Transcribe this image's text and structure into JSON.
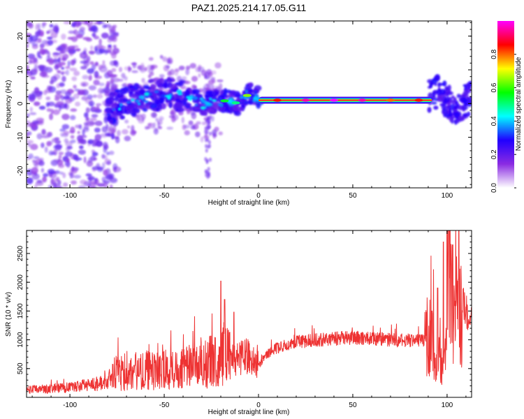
{
  "title": "PAZ1.2025.214.17.05.G11",
  "chart_data": [
    {
      "type": "heatmap",
      "xlabel": "Height of straight line (km)",
      "ylabel": "Frequency (Hz)",
      "xlim": [
        -123,
        113
      ],
      "ylim": [
        -25,
        24.5
      ],
      "x_ticks": [
        -100,
        -50,
        0,
        50,
        100
      ],
      "y_ticks": [
        -20,
        -10,
        0,
        10,
        20
      ],
      "colorbar": {
        "label": "Normalized spectral amplitude",
        "range": [
          0,
          1
        ],
        "ticks": [
          0.0,
          0.2,
          0.4,
          0.6,
          0.8
        ],
        "tick_labels": [
          "0.0",
          "0.2",
          "0.4",
          "0.6",
          "0.8"
        ],
        "colormap": [
          "#ffffff",
          "#8a2be2",
          "#2000ff",
          "#00ffff",
          "#00ff00",
          "#ffff00",
          "#ff0000",
          "#ff00ff"
        ]
      },
      "ridge": [
        {
          "x": -80,
          "y": -1
        },
        {
          "x": -70,
          "y": 0
        },
        {
          "x": -60,
          "y": 2
        },
        {
          "x": -50,
          "y": 3
        },
        {
          "x": -40,
          "y": 2
        },
        {
          "x": -30,
          "y": 0
        },
        {
          "x": -20,
          "y": 1
        },
        {
          "x": -10,
          "y": 0
        },
        {
          "x": -5,
          "y": 3
        },
        {
          "x": 0,
          "y": 1.5
        },
        {
          "x": 20,
          "y": 1
        },
        {
          "x": 50,
          "y": 1
        },
        {
          "x": 80,
          "y": 1
        },
        {
          "x": 90,
          "y": 1.5
        },
        {
          "x": 95,
          "y": 4
        },
        {
          "x": 100,
          "y": 0
        },
        {
          "x": 105,
          "y": -1
        },
        {
          "x": 110,
          "y": 1
        }
      ],
      "band": {
        "x_start": 0,
        "x_end": 92,
        "y": 1,
        "peak_amplitude": 1.0
      }
    },
    {
      "type": "line",
      "xlabel": "Height of straight line (km)",
      "ylabel": "SNR (10 * v/v)",
      "xlim": [
        -123,
        113
      ],
      "ylim": [
        0,
        2900
      ],
      "x_ticks": [
        -100,
        -50,
        0,
        50,
        100
      ],
      "y_ticks": [
        500,
        1000,
        1500,
        2000,
        2500
      ],
      "color": "#ee3333",
      "series": [
        {
          "x": [
            -123,
            -110,
            -100,
            -90,
            -80,
            -78,
            -75,
            -70,
            -65,
            -60,
            -55,
            -50,
            -45,
            -40,
            -35,
            -30,
            -25,
            -20,
            -18,
            -15,
            -10,
            -5,
            0,
            5,
            10,
            15,
            20,
            30,
            40,
            50,
            60,
            70,
            80,
            88,
            90,
            92,
            95,
            98,
            100,
            101,
            103,
            105,
            108,
            110,
            113
          ],
          "y": [
            130,
            150,
            170,
            220,
            260,
            400,
            420,
            400,
            450,
            470,
            450,
            480,
            500,
            540,
            560,
            600,
            620,
            640,
            850,
            660,
            680,
            720,
            560,
            760,
            860,
            920,
            960,
            990,
            1020,
            1040,
            1020,
            1000,
            990,
            1000,
            1100,
            900,
            700,
            400,
            900,
            2800,
            1000,
            1500,
            1650,
            1500,
            1350
          ]
        }
      ],
      "spikes": [
        {
          "x": -20,
          "y": 2020
        },
        {
          "x": -18,
          "y": 1700
        },
        {
          "x": -13,
          "y": 1480
        },
        {
          "x": 92,
          "y": 1500
        },
        {
          "x": 95,
          "y": 1900
        },
        {
          "x": 98,
          "y": 2700
        },
        {
          "x": 100,
          "y": 2900
        },
        {
          "x": 103,
          "y": 2650
        },
        {
          "x": 106,
          "y": 2050
        }
      ]
    }
  ]
}
